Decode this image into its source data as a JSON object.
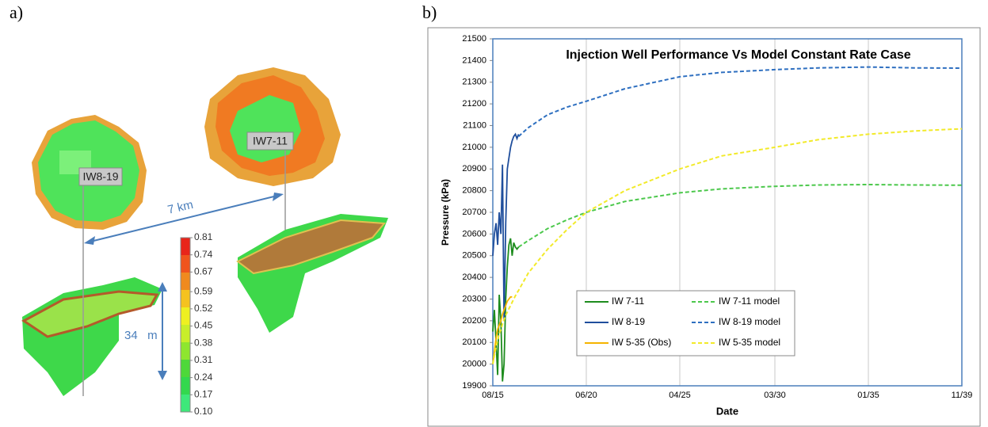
{
  "panel_a": {
    "label": "a)",
    "well_labels": [
      "IW8-19",
      "IW7-11"
    ],
    "distance": "7 km",
    "thickness": "34   m",
    "colorbar_ticks": [
      0.81,
      0.74,
      0.67,
      0.59,
      0.52,
      0.45,
      0.38,
      0.31,
      0.24,
      0.17,
      {
        "value": 0.1,
        "label": "0.10"
      }
    ]
  },
  "chart_data": {
    "type": "line",
    "panel_label": "b)",
    "title": "Injection Well Performance Vs Model Constant Rate Case",
    "x_label": "Date",
    "y_label": "Pressure (kPa)",
    "x": [
      "08/15",
      "09/15",
      "10/15",
      "11/15",
      "12/15",
      "01/16",
      "02/16",
      "03/16",
      "04/16",
      "05/16",
      "06/16",
      "07/16",
      "08/16",
      "09/16",
      "10/16",
      "11/16",
      "12/16",
      "06/17",
      "06/18",
      "06/19",
      "06/20",
      "06/22",
      "04/25",
      "06/27",
      "03/30",
      "06/32",
      "01/35",
      "06/37",
      "11/39"
    ],
    "xlim": [
      "08/15",
      "11/39"
    ],
    "xticks": [
      "08/15",
      "06/20",
      "04/25",
      "03/30",
      "01/35",
      "11/39"
    ],
    "ylim": [
      19900,
      21500
    ],
    "yticks": [
      19900,
      20000,
      20100,
      20200,
      20300,
      20400,
      20500,
      20600,
      20700,
      20800,
      20900,
      21000,
      21100,
      21200,
      21300,
      21400,
      21500
    ],
    "legend": "lower left",
    "series": [
      {
        "name": "IW 7-11",
        "color": "#1e8c1e",
        "dashed": false,
        "values": [
          20150,
          20250,
          20100,
          19950,
          20320,
          20200,
          19920,
          20000,
          20300,
          20450,
          20550,
          20580,
          20500,
          20560,
          20540,
          20530,
          20540,
          null,
          null,
          null,
          null,
          null,
          null,
          null,
          null,
          null,
          null,
          null,
          null
        ]
      },
      {
        "name": "IW 8-19",
        "color": "#1f4e9c",
        "dashed": false,
        "values": [
          20500,
          20600,
          20650,
          20550,
          20700,
          20600,
          20920,
          20200,
          20650,
          20900,
          20950,
          21000,
          21030,
          21050,
          21060,
          21040,
          21060,
          null,
          null,
          null,
          null,
          null,
          null,
          null,
          null,
          null,
          null,
          null,
          null
        ]
      },
      {
        "name": "IW 5-35 (Obs)",
        "color": "#f5b400",
        "dashed": false,
        "values": [
          20000,
          20060,
          20120,
          20160,
          20180,
          20200,
          20230,
          20250,
          20270,
          20290,
          20300,
          20310,
          20310,
          null,
          null,
          null,
          null,
          null,
          null,
          null,
          null,
          null,
          null,
          null,
          null,
          null,
          null,
          null,
          null
        ]
      },
      {
        "name": "IW 7-11 model",
        "color": "#4cc84c",
        "dashed": true,
        "values": [
          null,
          null,
          null,
          null,
          null,
          null,
          null,
          null,
          null,
          null,
          null,
          null,
          null,
          null,
          null,
          null,
          20540,
          20570,
          20625,
          20665,
          20700,
          20750,
          20790,
          20808,
          20820,
          20826,
          20828,
          20826,
          20825
        ]
      },
      {
        "name": "IW 8-19 model",
        "color": "#2e6fc0",
        "dashed": true,
        "values": [
          null,
          null,
          null,
          null,
          null,
          null,
          null,
          null,
          null,
          null,
          null,
          null,
          null,
          null,
          null,
          null,
          21050,
          21090,
          21150,
          21185,
          21212,
          21270,
          21325,
          21345,
          21358,
          21366,
          21370,
          21366,
          21365
        ]
      },
      {
        "name": "IW 5-35 model",
        "color": "#f2ea2a",
        "dashed": true,
        "values": [
          20000,
          20040,
          20080,
          20110,
          20140,
          20160,
          20185,
          20205,
          20225,
          20240,
          20255,
          20270,
          20285,
          20300,
          20315,
          20328,
          20340,
          20420,
          20530,
          20620,
          20700,
          20800,
          20900,
          20960,
          21000,
          21035,
          21060,
          21075,
          21085
        ]
      }
    ]
  }
}
